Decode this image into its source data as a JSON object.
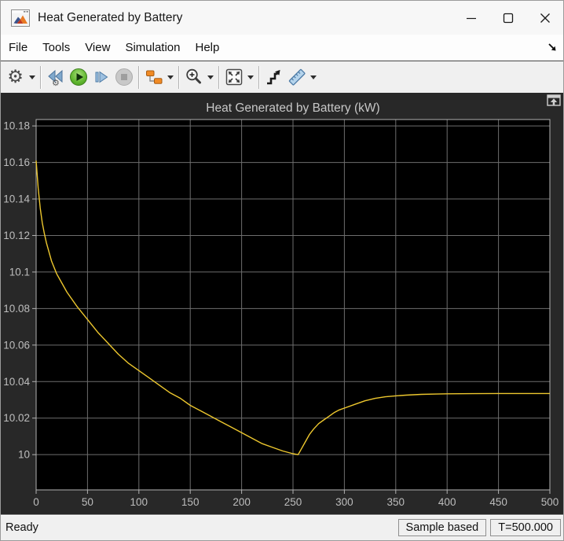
{
  "window": {
    "title": "Heat Generated by Battery"
  },
  "menu": {
    "items": [
      "File",
      "Tools",
      "View",
      "Simulation",
      "Help"
    ]
  },
  "toolbar": {
    "buttons": [
      {
        "name": "configuration-gear",
        "dropdown": true
      },
      {
        "name": "step-back",
        "dropdown": false
      },
      {
        "name": "run",
        "dropdown": false
      },
      {
        "name": "step-forward",
        "dropdown": false
      },
      {
        "name": "stop",
        "dropdown": false,
        "disabled": true
      },
      {
        "name": "simulink-hierarchy",
        "dropdown": true
      },
      {
        "name": "zoom-in",
        "dropdown": true
      },
      {
        "name": "fit-to-view",
        "dropdown": true
      },
      {
        "name": "signal-stairs",
        "dropdown": false
      },
      {
        "name": "measurements-ruler",
        "dropdown": true
      }
    ]
  },
  "chart_data": {
    "type": "line",
    "title": "Heat Generated by Battery (kW)",
    "xlabel": "",
    "ylabel": "",
    "xlim": [
      0,
      500
    ],
    "ylim": [
      9.9807,
      10.1835
    ],
    "xticks": [
      0,
      50,
      100,
      150,
      200,
      250,
      300,
      350,
      400,
      450,
      500
    ],
    "yticks": [
      10,
      10.02,
      10.04,
      10.06,
      10.08,
      10.1,
      10.12,
      10.14,
      10.16,
      10.18
    ],
    "ytick_labels": [
      "10",
      "10.02",
      "10.04",
      "10.06",
      "10.08",
      "10.1",
      "10.12",
      "10.14",
      "10.16",
      "10.18"
    ],
    "grid": true,
    "legend": null,
    "plot_bg": "#000000",
    "grid_color": "#6e6e6e",
    "axis_color": "#b2b2b2",
    "label_color": "#bdbdbd",
    "title_color": "#c8c8c8",
    "line_color": "#edc72e",
    "x": [
      0,
      2,
      4,
      6,
      8,
      10,
      15,
      20,
      25,
      30,
      40,
      50,
      60,
      70,
      80,
      90,
      100,
      110,
      120,
      130,
      140,
      150,
      160,
      170,
      180,
      190,
      200,
      210,
      220,
      230,
      240,
      250,
      255,
      258,
      262,
      266,
      270,
      275,
      280,
      285,
      290,
      295,
      300,
      310,
      320,
      330,
      340,
      350,
      360,
      375,
      390,
      400,
      425,
      450,
      475,
      500
    ],
    "y": [
      10.161,
      10.146,
      10.135,
      10.127,
      10.121,
      10.116,
      10.106,
      10.099,
      10.094,
      10.089,
      10.081,
      10.074,
      10.067,
      10.061,
      10.055,
      10.05,
      10.046,
      10.042,
      10.038,
      10.034,
      10.031,
      10.027,
      10.024,
      10.021,
      10.018,
      10.015,
      10.012,
      10.009,
      10.006,
      10.004,
      10.002,
      10.0005,
      10.0,
      10.003,
      10.007,
      10.011,
      10.014,
      10.017,
      10.019,
      10.021,
      10.023,
      10.0245,
      10.0255,
      10.0275,
      10.0295,
      10.0308,
      10.0317,
      10.0322,
      10.0326,
      10.033,
      10.0332,
      10.0333,
      10.0334,
      10.0335,
      10.0335,
      10.0335
    ]
  },
  "statusbar": {
    "status": "Ready",
    "sample_mode": "Sample based",
    "sim_time": "T=500.000"
  }
}
